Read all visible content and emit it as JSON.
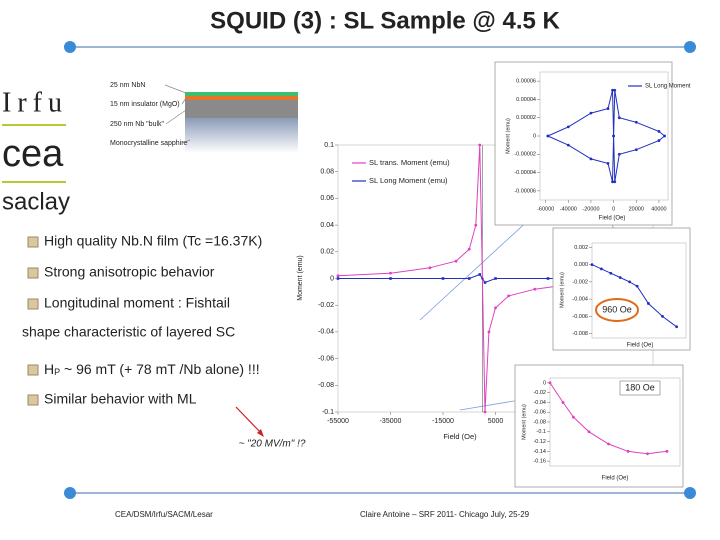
{
  "title": "SQUID (3) : SL Sample @ 4.5 K",
  "logos": [
    "Irfu",
    "cea",
    "saclay"
  ],
  "layers": [
    "25 nm NbN",
    "15 nm insulator (MgO)",
    "250 nm Nb \"bulk\"",
    "Monocrystalline sapphire"
  ],
  "bullets": [
    "High quality Nb.N film (Tc =16.37K)",
    "Strong anisotropic behavior",
    "Longitudinal moment : Fishtail"
  ],
  "continuation": "shape characteristic of layered SC",
  "hp": {
    "main": "H",
    "sub": "P",
    "rest": " ~ 96 mT (+ 78 mT /Nb alone) !!!"
  },
  "last_bullet": "Similar behavior with ML",
  "annotation": "~ \"20 MV/m\" !?",
  "footer": {
    "left": "CEA/DSM/Irfu/SACM/Lesar",
    "right": "Claire Antoine – SRF 2011- Chicago July, 25-29"
  },
  "chart_data": [
    {
      "type": "line",
      "xlabel": "Field (Oe)",
      "ylabel": "Moment (emu)",
      "xlim": [
        -55000,
        65000
      ],
      "ylim": [
        -0.1,
        0.1
      ],
      "xticks": [
        -55000,
        -35000,
        -15000,
        5000,
        25000
      ],
      "yticks": [
        0.1,
        0.08,
        0.06,
        0.04,
        0.02,
        0,
        -0.02,
        -0.04,
        -0.06,
        -0.08,
        -0.1
      ],
      "series": [
        {
          "name": "SL trans. Moment (emu)",
          "color": "#e040c0",
          "x": [
            -55000,
            -35000,
            -20000,
            -10000,
            -5000,
            -2500,
            -1000,
            0,
            1000,
            2500,
            5000,
            10000,
            20000,
            35000,
            65000
          ],
          "values": [
            0.002,
            0.004,
            0.008,
            0.013,
            0.022,
            0.04,
            0.1,
            0,
            -0.1,
            -0.04,
            -0.022,
            -0.013,
            -0.008,
            -0.004,
            -0.002
          ]
        },
        {
          "name": "SL Long Moment (emu)",
          "color": "#2030c0",
          "x": [
            -55000,
            -35000,
            -15000,
            -5000,
            -1000,
            1000,
            5000,
            25000,
            65000
          ],
          "values": [
            0,
            0,
            0,
            0,
            0.003,
            -0.003,
            0,
            0,
            0
          ]
        }
      ]
    },
    {
      "type": "line",
      "xlabel": "Field (Oe)",
      "ylabel": "Moment (emu)",
      "xlim": [
        -65000,
        48000
      ],
      "ylim": [
        -7e-05,
        7e-05
      ],
      "xticks": [
        -60000,
        -40000,
        -20000,
        0,
        20000,
        40000
      ],
      "yticks": [
        6e-05,
        4e-05,
        2e-05,
        0,
        -2e-05,
        -4e-05,
        -6e-05
      ],
      "series": [
        {
          "name": "SL Long Moment",
          "color": "#2030c0",
          "x": [
            -58000,
            -40000,
            -20000,
            -5000,
            -1000,
            0,
            1000,
            5000,
            20000,
            40000,
            45000,
            40000,
            20000,
            5000,
            1000,
            0,
            -1000,
            -5000,
            -20000,
            -40000,
            -58000
          ],
          "values": [
            0,
            1e-05,
            2.5e-05,
            3e-05,
            5e-05,
            0,
            -5e-05,
            -2e-05,
            -1.5e-05,
            -5e-06,
            0,
            5e-06,
            1.5e-05,
            2e-05,
            5e-05,
            0,
            -5e-05,
            -3e-05,
            -2.5e-05,
            -1e-05,
            0
          ]
        }
      ]
    },
    {
      "type": "line",
      "xlabel": "Field (Oe)",
      "ylabel": "Moment (emu)",
      "annotation": "960 Oe",
      "xlim": [
        0,
        2000
      ],
      "ylim": [
        -0.0085,
        0.0025
      ],
      "yticks": [
        0.002,
        {
          "value": 0,
          "label": "0.000"
        },
        -0.002,
        -0.004,
        -0.006,
        -0.008
      ],
      "series": [
        {
          "color": "#2030c0",
          "x": [
            0,
            200,
            400,
            600,
            800,
            960,
            1200,
            1500,
            1800
          ],
          "values": [
            0,
            -0.0005,
            -0.001,
            -0.0015,
            -0.002,
            -0.0025,
            -0.0045,
            -0.006,
            -0.0072
          ]
        }
      ]
    },
    {
      "type": "line",
      "xlabel": "Field (Oe)",
      "ylabel": "Moment (emu)",
      "annotation": "180 Oe",
      "xlim": [
        0,
        1000
      ],
      "ylim": [
        -0.17,
        0.01
      ],
      "yticks": [
        0,
        -0.02,
        -0.04,
        -0.06,
        -0.08,
        -0.1,
        -0.12,
        -0.14,
        -0.16
      ],
      "series": [
        {
          "color": "#e040c0",
          "x": [
            0,
            100,
            180,
            300,
            450,
            600,
            750,
            900
          ],
          "values": [
            0,
            -0.04,
            -0.07,
            -0.1,
            -0.125,
            -0.14,
            -0.145,
            -0.14
          ]
        }
      ]
    }
  ]
}
